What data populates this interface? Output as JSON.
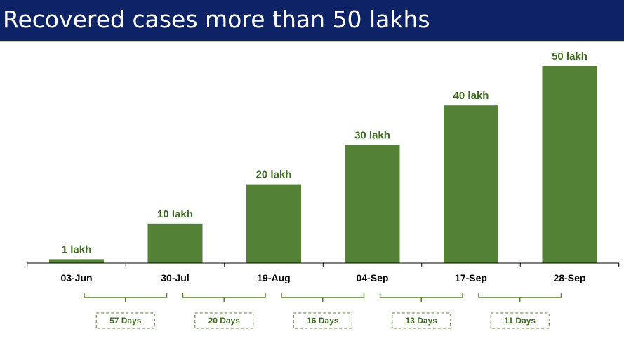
{
  "header": {
    "title": "Recovered cases more than 50 lakhs"
  },
  "colors": {
    "header_bg": "#0d2366",
    "bar": "#538135",
    "label": "#3f6b22",
    "axis": "#000000"
  },
  "chart_data": {
    "type": "bar",
    "title": "Recovered cases more than 50 lakhs",
    "categories": [
      "03-Jun",
      "30-Jul",
      "19-Aug",
      "04-Sep",
      "17-Sep",
      "28-Sep"
    ],
    "values": [
      1,
      10,
      20,
      30,
      40,
      50
    ],
    "unit": "lakh",
    "data_labels": [
      "1 lakh",
      "10 lakh",
      "20 lakh",
      "30 lakh",
      "40 lakh",
      "50 lakh"
    ],
    "ylim": [
      0,
      50
    ],
    "grid": false,
    "legend": "none",
    "intervals": [
      {
        "from": "03-Jun",
        "to": "30-Jul",
        "label": "57 Days"
      },
      {
        "from": "30-Jul",
        "to": "19-Aug",
        "label": "20 Days"
      },
      {
        "from": "19-Aug",
        "to": "04-Sep",
        "label": "16 Days"
      },
      {
        "from": "04-Sep",
        "to": "17-Sep",
        "label": "13 Days"
      },
      {
        "from": "17-Sep",
        "to": "28-Sep",
        "label": "11 Days"
      }
    ]
  }
}
